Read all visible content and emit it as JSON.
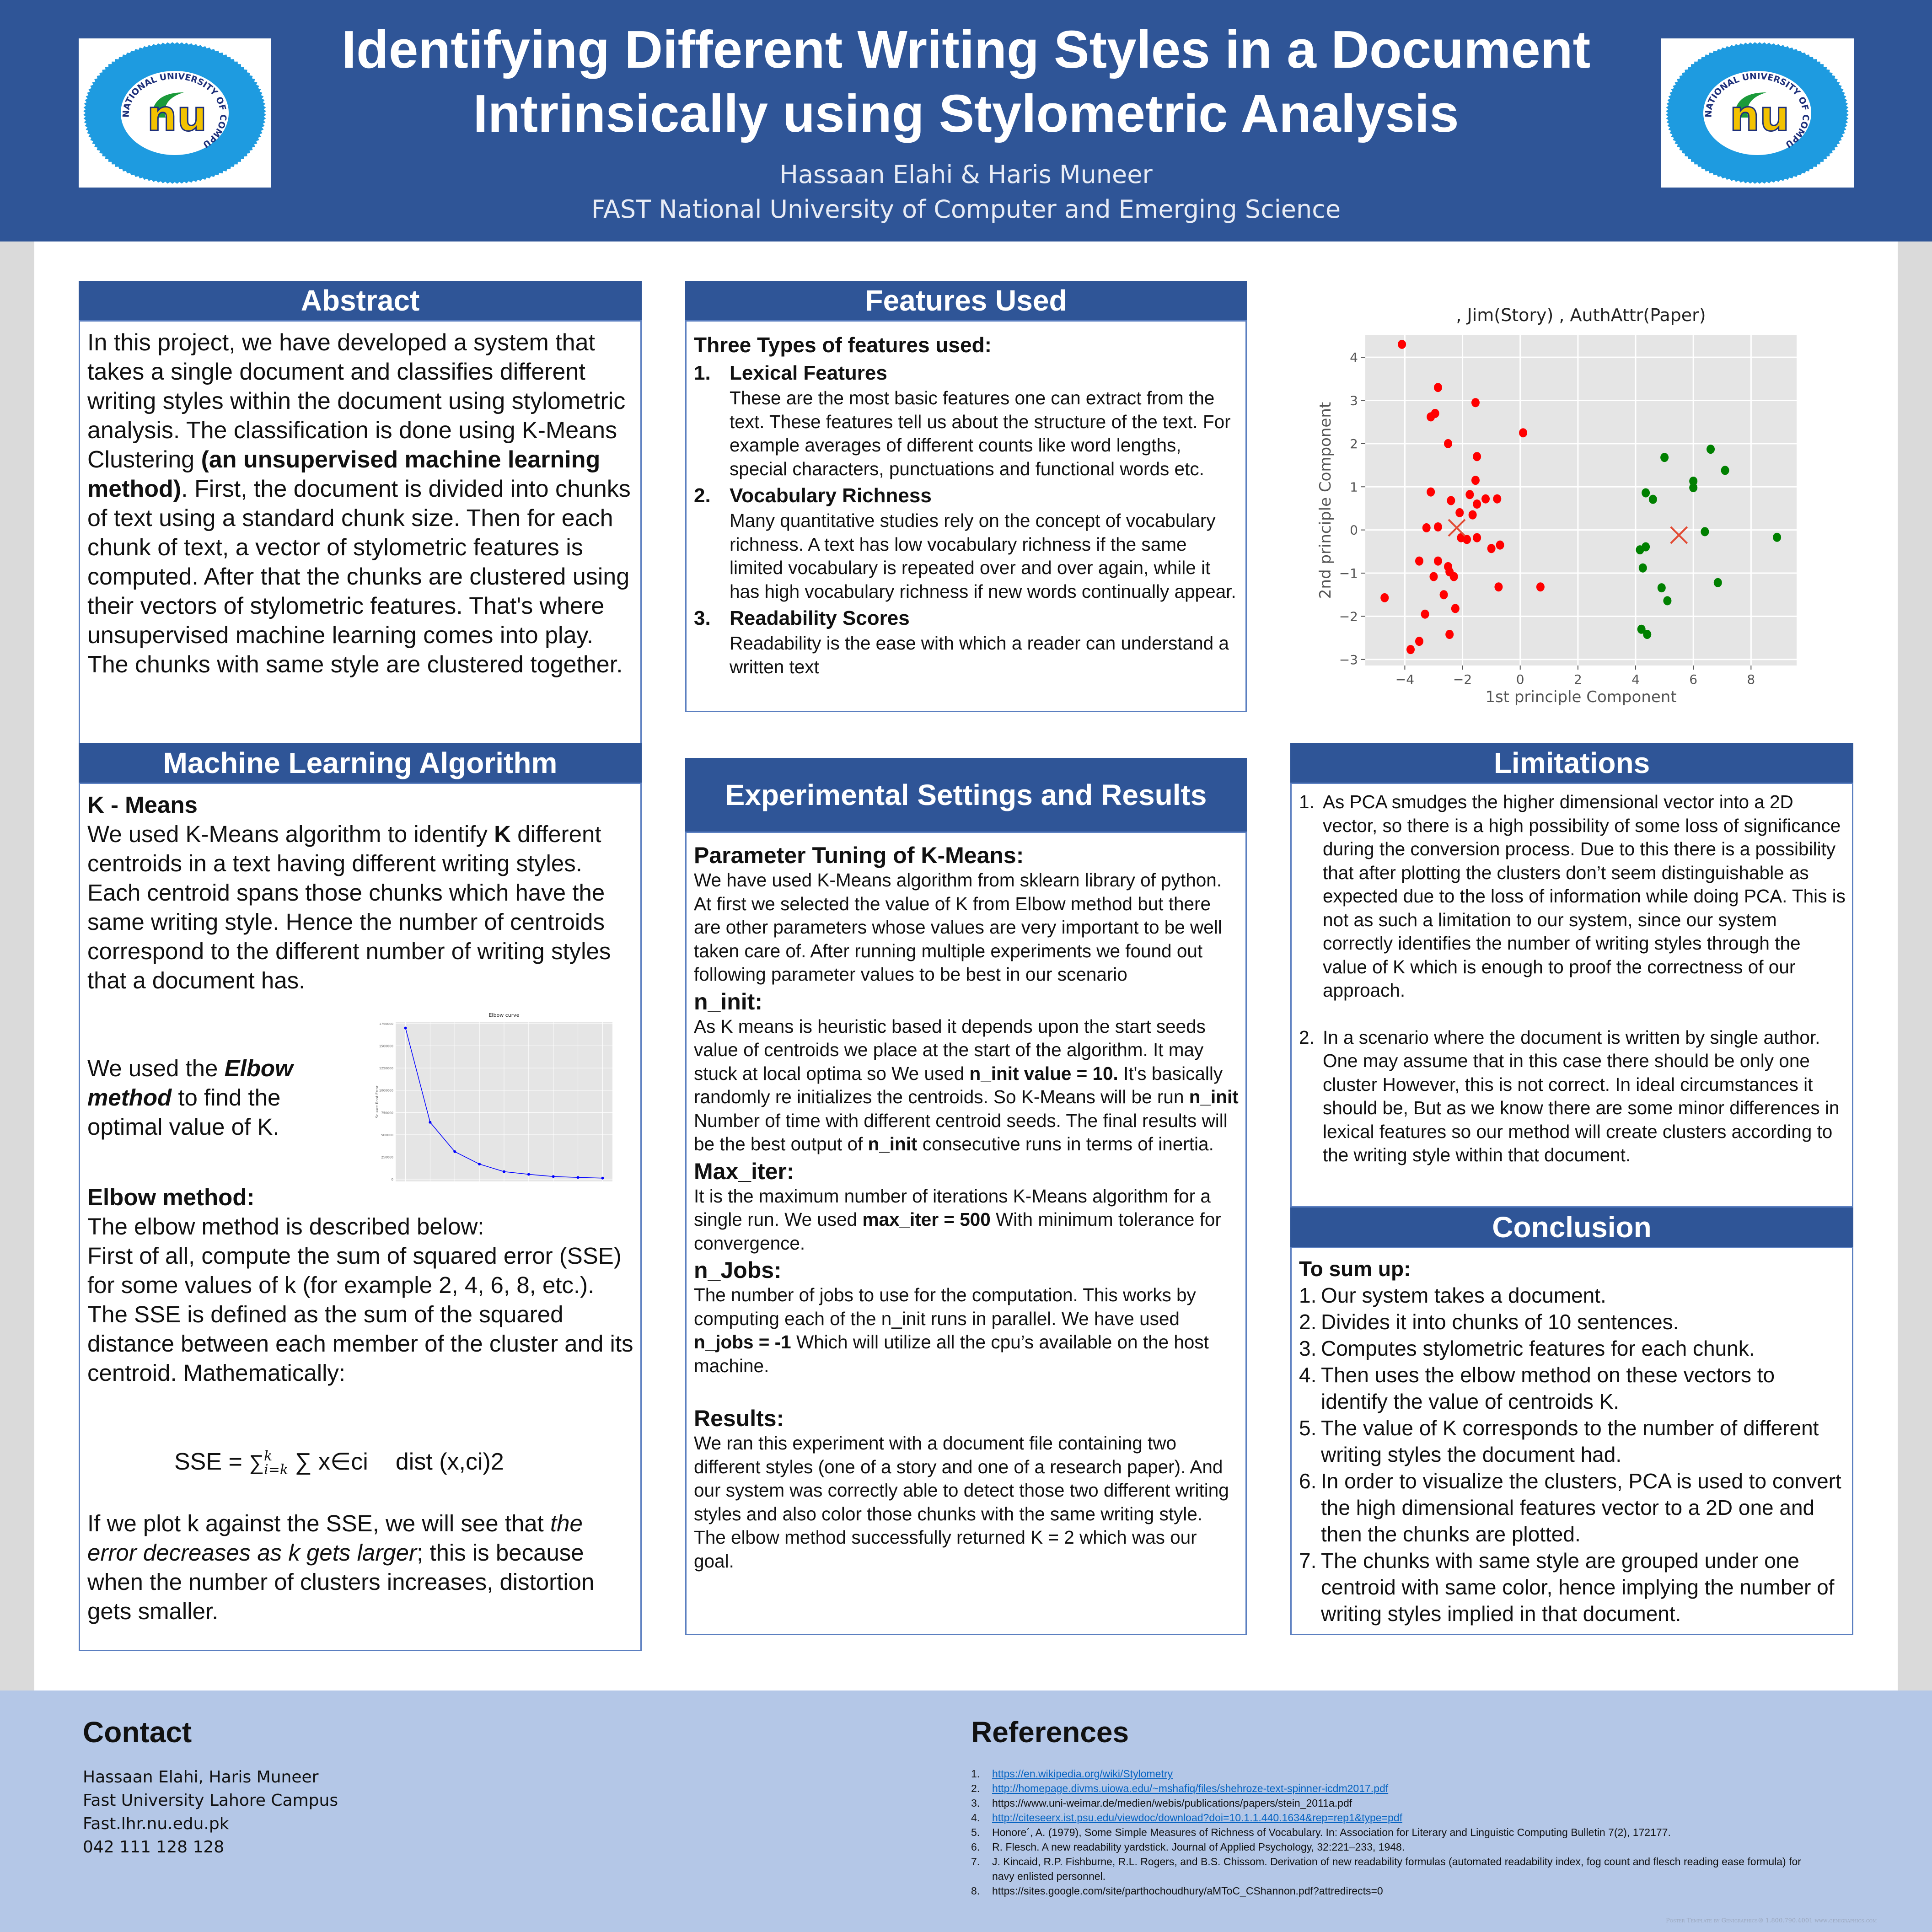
{
  "header": {
    "title_line1": "Identifying Different Writing Styles in a Document",
    "title_line2": "Intrinsically using Stylometric Analysis",
    "authors": "Hassaan Elahi & Haris Muneer",
    "affiliation": "FAST National University of Computer and Emerging Science",
    "logo_text": "NATIONAL UNIVERSITY OF COMPUTER & EMERGING SCIENCES",
    "logo_mark": "nu",
    "colors": {
      "brand": "#2f5597",
      "logo_blue": "#1e9be0",
      "logo_yellow": "#f2c200",
      "logo_green": "#1a9a3a"
    }
  },
  "abstract": {
    "heading": "Abstract",
    "text": [
      [
        "In this project, we have developed a system that takes a single document and classifies different writing styles within the document using stylometric analysis. The classification is done using K-Means Clustering ",
        ""
      ],
      [
        "(an unsupervised machine learning method)",
        "b"
      ],
      [
        ". First, the document is divided into chunks of text using a standard chunk size. Then for each chunk of text, a vector of stylometric features is computed. After that the chunks are clustered using their vectors of stylometric features. That's where unsupervised machine learning comes into play. The chunks with same style are clustered together.",
        ""
      ]
    ]
  },
  "features": {
    "heading": "Features Used",
    "intro": "Three Types of features used:",
    "items": [
      {
        "num": "1.",
        "title": "Lexical Features",
        "text": "These are the most basic features one can extract from the text. These features tell us about the structure of the text. For example averages of different counts like word lengths, special characters, punctuations and functional words etc."
      },
      {
        "num": "2.",
        "title": "Vocabulary Richness",
        "text": "Many quantitative studies rely on the concept of vocabulary richness. A text has low vocabulary richness if the same limited vocabulary is repeated over and over again, while it has high vocabulary richness if new words continually appear."
      },
      {
        "num": "3.",
        "title": "Readability Scores",
        "text": "Readability is the ease with which a reader can understand a written text"
      }
    ]
  },
  "ml": {
    "heading": "Machine Learning Algorithm",
    "subheading": "K - Means",
    "intro": [
      [
        "We used K-Means algorithm to identify ",
        ""
      ],
      [
        "K",
        "b"
      ],
      [
        " different centroids in a text having different  writing styles. Each centroid spans those chunks which have the same writing style. Hence the number of centroids correspond to the different number of writing styles that a document has.",
        ""
      ]
    ],
    "elbow_text": [
      [
        "We used the ",
        ""
      ],
      [
        "Elbow method",
        "bi"
      ],
      [
        " to find the optimal value of K.",
        ""
      ]
    ],
    "elbow_heading": "Elbow method:",
    "elbow_desc": "The elbow method is described below:",
    "elbow_body": "First of all, compute the sum of squared error (SSE) for some values of k (for example 2, 4, 6, 8, etc.). The SSE is defined as the sum of the squared distance between each member of the cluster and its centroid. Mathematically:",
    "formula": {
      "lhs": "SSE = ",
      "sum": "∑",
      "sup": "k",
      "sub": "i=k",
      "rest": " ∑ x∈ci",
      "dist": "dist (x,ci)2"
    },
    "conclusion": [
      [
        "If we plot k against the SSE, we will see that ",
        ""
      ],
      [
        "the error decreases as k gets larger",
        "i"
      ],
      [
        "; this is because when the number of clusters increases, distortion gets smaller.",
        ""
      ]
    ]
  },
  "experiment": {
    "heading": "Experimental Settings and Results",
    "sections": [
      {
        "title": "Parameter Tuning of K-Means:",
        "text": [
          [
            "We have used K-Means algorithm from sklearn library of python. At first we selected the value of K from Elbow method but there are other parameters whose values are very important to be well taken care of. After running multiple experiments we found out following parameter values to be best in our scenario",
            ""
          ]
        ]
      },
      {
        "title": "n_init:",
        "text": [
          [
            "As K means is heuristic based it depends upon the start seeds value of centroids we place at the start of the algorithm. It may stuck at local optima so We used ",
            ""
          ],
          [
            "n_init value = 10.",
            "b"
          ],
          [
            " It's basically randomly re initializes the centroids. So K-Means will be run ",
            ""
          ],
          [
            "n_init",
            "b"
          ],
          [
            "  Number of time with different centroid seeds. The final results will be the best output of ",
            ""
          ],
          [
            "n_init",
            "b"
          ],
          [
            " consecutive runs in terms of inertia.",
            ""
          ]
        ]
      },
      {
        "title": "Max_iter:",
        "text": [
          [
            "It is the maximum number of iterations K-Means algorithm for a single run. We used ",
            ""
          ],
          [
            "max_iter = 500",
            "b"
          ],
          [
            " With minimum tolerance for convergence.",
            ""
          ]
        ]
      },
      {
        "title": "n_Jobs:",
        "text": [
          [
            "The number of jobs to use for the computation. This works by computing each of the n_init runs in parallel. We have used ",
            ""
          ],
          [
            "n_jobs = -1",
            "b"
          ],
          [
            " Which will utilize all the cpu’s available on the host machine.",
            ""
          ]
        ]
      },
      {
        "title": "Results:",
        "text": [
          [
            "We ran this experiment with a document file containing two different styles (one of a story and one of a research paper). And our system was correctly able to detect those two different writing styles and also color those chunks with the same writing style. The elbow method successfully returned K = 2 which was our goal.",
            ""
          ]
        ]
      }
    ]
  },
  "limitations": {
    "heading": "Limitations",
    "items": [
      {
        "num": "1.",
        "text": "As PCA smudges the higher dimensional vector into a 2D vector, so there is a high possibility of some loss of significance during the conversion process. Due to this there is a possibility that after plotting the clusters don’t seem distinguishable as expected due to the loss of information while doing PCA. This is not as such a limitation to our system, since our system correctly identifies the number of writing styles through the value of K which is enough to proof the correctness of our approach."
      },
      {
        "num": "2.",
        "text": "In a scenario where the document is written by single author. One may assume that in this case there should be only one cluster However, this is not correct. In ideal circumstances it should be, But as we know there are some minor differences in lexical features so our method will create clusters according to the writing style within that document."
      }
    ]
  },
  "conclusion": {
    "heading": "Conclusion",
    "intro": "To sum up:",
    "items": [
      {
        "num": "1.",
        "text": "Our system takes a document."
      },
      {
        "num": "2.",
        "text": "Divides it into chunks of 10 sentences."
      },
      {
        "num": "3.",
        "text": "Computes stylometric features for each chunk."
      },
      {
        "num": "4.",
        "text": "Then uses the elbow method on these vectors to identify the value of centroids K."
      },
      {
        "num": "5.",
        "text": "The value of K corresponds to the number of different writing styles the document had."
      },
      {
        "num": "6.",
        "text": "In order to visualize the clusters, PCA is used to convert the high dimensional features vector to a 2D one and then the chunks are plotted."
      },
      {
        "num": "7.",
        "text": "The chunks with same style are grouped under one centroid with same color, hence implying the number of writing styles implied in that document."
      }
    ]
  },
  "contact": {
    "heading": "Contact",
    "lines": [
      "Hassaan Elahi, Haris Muneer",
      "Fast University Lahore Campus",
      "Fast.lhr.nu.edu.pk",
      "042 111 128 128"
    ]
  },
  "references": {
    "heading": "References",
    "items": [
      {
        "num": "1.",
        "text": "https://en.wikipedia.org/wiki/Stylometry",
        "link": true
      },
      {
        "num": "2.",
        "text": "http://homepage.divms.uiowa.edu/~mshafiq/files/shehroze-text-spinner-icdm2017.pdf",
        "link": true
      },
      {
        "num": "3.",
        "text": "https://www.uni-weimar.de/medien/webis/publications/papers/stein_2011a.pdf",
        "link": false
      },
      {
        "num": "4.",
        "text": "http://citeseerx.ist.psu.edu/viewdoc/download?doi=10.1.1.440.1634&rep=rep1&type=pdf",
        "link": true
      },
      {
        "num": "5.",
        "text": "Honore´, A. (1979), Some Simple Measures of Richness of Vocabulary. In: Association for Literary and Linguistic Computing Bulletin 7(2), 172177.",
        "link": false
      },
      {
        "num": "6.",
        "text": "R. Flesch. A new readability yardstick. Journal of Applied Psychology, 32:221–233, 1948.",
        "link": false
      },
      {
        "num": "7.",
        "text": "J. Kincaid, R.P. Fishburne, R.L. Rogers, and B.S. Chissom. Derivation of new readability formulas (automated readability index, fog count and flesch reading ease formula) for navy enlisted personnel.",
        "link": false
      },
      {
        "num": "8.",
        "text": "https://sites.google.com/site/parthochoudhury/aMToC_CShannon.pdf?attredirects=0",
        "link": false
      }
    ]
  },
  "watermark": "Poster Template by Genigraphics® 1.800.790.4001 www.genigraphics.com",
  "chart_data": [
    {
      "type": "scatter",
      "title": ", Jim(Story) , AuthAttr(Paper)",
      "xlabel": "1st principle Component",
      "ylabel": "2nd principle Component",
      "xlim": [
        -5.37,
        9.58
      ],
      "ylim": [
        -3.14,
        4.51
      ],
      "xticks": [
        -4,
        -2,
        0,
        2,
        4,
        6,
        8
      ],
      "yticks": [
        -3,
        -2,
        -1,
        0,
        1,
        2,
        3,
        4
      ],
      "xtick_labels": [
        "−4",
        "−2",
        "0",
        "2",
        "4",
        "6",
        "8"
      ],
      "ytick_labels": [
        "−3",
        "−2",
        "−1",
        "0",
        "1",
        "2",
        "3",
        "4"
      ],
      "grid": true,
      "background": "#e5e5e5",
      "series": [
        {
          "color": "#ff0000",
          "points": [
            [
              -4.1,
              4.3
            ],
            [
              -2.85,
              3.3
            ],
            [
              -1.55,
              2.95
            ],
            [
              -2.95,
              2.7
            ],
            [
              -3.1,
              2.62
            ],
            [
              0.1,
              2.25
            ],
            [
              -2.5,
              2.0
            ],
            [
              -1.5,
              1.7
            ],
            [
              -1.55,
              1.15
            ],
            [
              -3.1,
              0.88
            ],
            [
              -1.75,
              0.82
            ],
            [
              -1.2,
              0.72
            ],
            [
              -0.8,
              0.72
            ],
            [
              -2.4,
              0.68
            ],
            [
              -1.5,
              0.6
            ],
            [
              -2.1,
              0.4
            ],
            [
              -1.65,
              0.35
            ],
            [
              -3.25,
              0.05
            ],
            [
              -2.85,
              0.07
            ],
            [
              -2.05,
              -0.18
            ],
            [
              -1.85,
              -0.22
            ],
            [
              -1.5,
              -0.18
            ],
            [
              -1.0,
              -0.43
            ],
            [
              -0.7,
              -0.35
            ],
            [
              -3.5,
              -0.72
            ],
            [
              -2.85,
              -0.72
            ],
            [
              -2.5,
              -0.85
            ],
            [
              -2.45,
              -0.97
            ],
            [
              -3.0,
              -1.08
            ],
            [
              -2.3,
              -1.08
            ],
            [
              -0.75,
              -1.32
            ],
            [
              0.7,
              -1.32
            ],
            [
              -4.7,
              -1.57
            ],
            [
              -2.65,
              -1.5
            ],
            [
              -2.25,
              -1.82
            ],
            [
              -3.3,
              -1.95
            ],
            [
              -2.45,
              -2.42
            ],
            [
              -3.5,
              -2.58
            ],
            [
              -3.8,
              -2.77
            ]
          ]
        },
        {
          "color": "#008000",
          "points": [
            [
              5.0,
              1.68
            ],
            [
              6.6,
              1.87
            ],
            [
              7.1,
              1.38
            ],
            [
              6.0,
              1.13
            ],
            [
              6.0,
              0.98
            ],
            [
              4.35,
              0.86
            ],
            [
              4.6,
              0.71
            ],
            [
              6.4,
              -0.04
            ],
            [
              8.9,
              -0.17
            ],
            [
              4.15,
              -0.46
            ],
            [
              4.35,
              -0.39
            ],
            [
              4.25,
              -0.88
            ],
            [
              6.85,
              -1.22
            ],
            [
              4.9,
              -1.34
            ],
            [
              5.1,
              -1.64
            ],
            [
              4.2,
              -2.3
            ],
            [
              4.4,
              -2.42
            ]
          ]
        }
      ],
      "centroids": {
        "color": "#e24a33",
        "points": [
          [
            -2.2,
            0.05
          ],
          [
            5.5,
            -0.12
          ]
        ]
      }
    },
    {
      "type": "line",
      "title": "Elbow curve",
      "xlabel": "Number of Clusters",
      "ylabel": "Square Root Error",
      "x": [
        1,
        2,
        3,
        4,
        5,
        6,
        7,
        8,
        9
      ],
      "values": [
        1700000,
        640000,
        310000,
        170000,
        85000,
        55000,
        30000,
        20000,
        12000
      ],
      "xlim": [
        0.6,
        9.4
      ],
      "ylim": [
        -25000,
        1765000
      ],
      "yticks": [
        0,
        250000,
        500000,
        750000,
        1000000,
        1250000,
        1500000,
        1750000
      ],
      "grid": true,
      "color": "#0000ff",
      "background": "#e5e5e5"
    }
  ]
}
